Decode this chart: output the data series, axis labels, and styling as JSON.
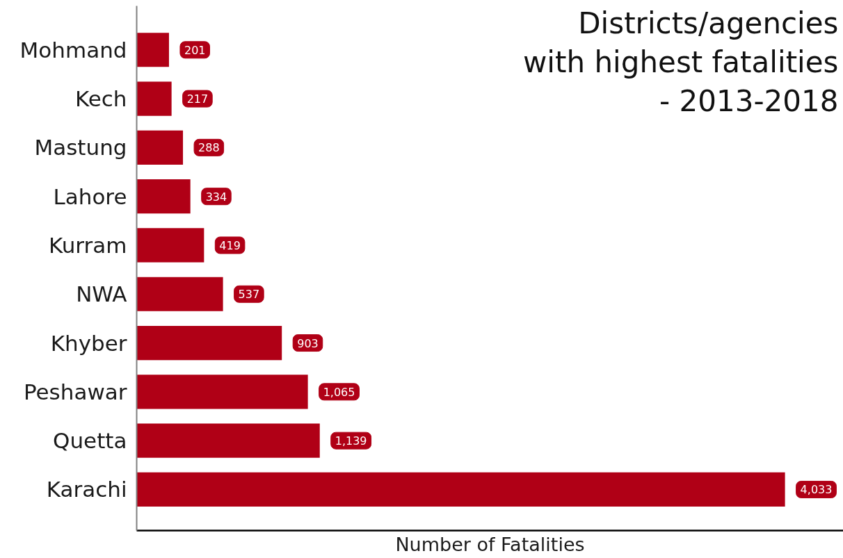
{
  "chart_data": {
    "type": "bar",
    "orientation": "horizontal",
    "title": "Districts/agencies\nwith highest fatalities\n- 2013-2018",
    "xlabel": "Number of Fatalities",
    "categories": [
      "Mohmand",
      "Kech",
      "Mastung",
      "Lahore",
      "Kurram",
      "NWA",
      "Khyber",
      "Peshawar",
      "Quetta",
      "Karachi"
    ],
    "values": [
      201,
      217,
      288,
      334,
      419,
      537,
      903,
      1065,
      1139,
      4033
    ],
    "color": "#b00016",
    "value_labels": [
      "201",
      "217",
      "288",
      "334",
      "419",
      "537",
      "903",
      "1,065",
      "1,139",
      "4,033"
    ],
    "tick_labels": "y"
  }
}
